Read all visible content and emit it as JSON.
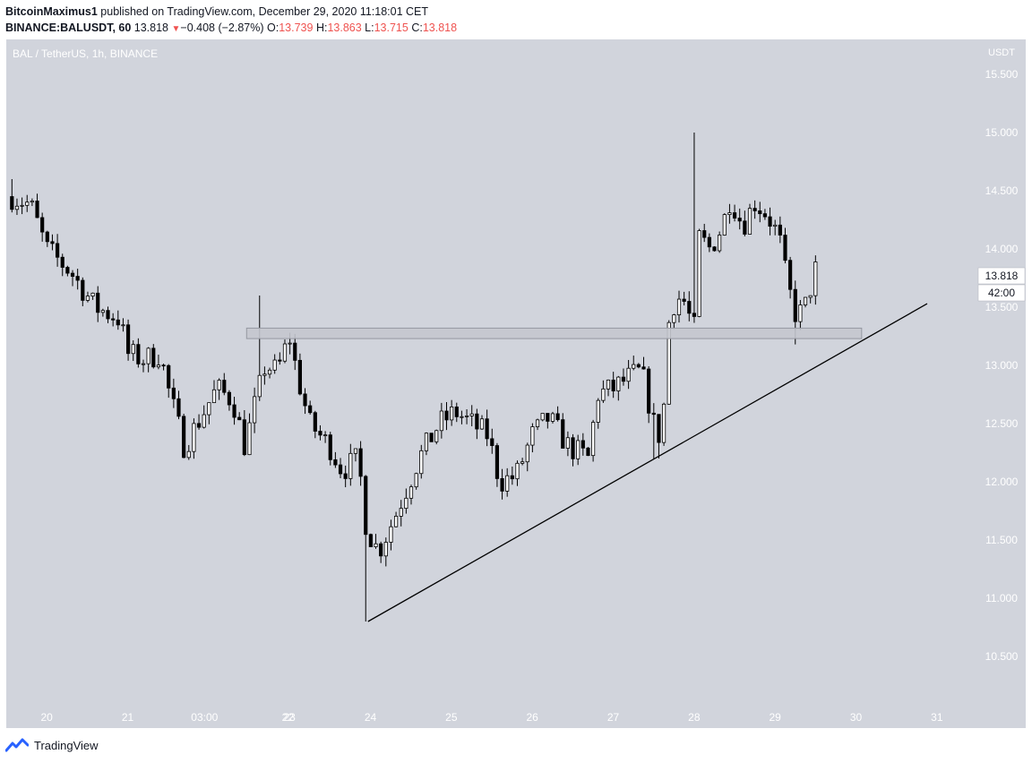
{
  "header": {
    "author": "BitcoinMaximus1",
    "published_text": "published on TradingView.com, December 29, 2020 11:18:01 CET",
    "symbol": "BINANCE:BALUSDT, 60",
    "last": "13.818",
    "change_arrow": "▼",
    "change": "−0.408 (−2.87%)",
    "o_label": "O:",
    "o": "13.739",
    "h_label": "H:",
    "h": "13.863",
    "l_label": "L:",
    "l": "13.715",
    "c_label": "C:",
    "c": "13.818"
  },
  "pane": {
    "legend": "BAL / TetherUS, 1h, BINANCE",
    "axis_currency": "USDT",
    "price_tag": "13.818",
    "countdown_tag": "42:00"
  },
  "footer": {
    "brand": "TradingView"
  },
  "colors": {
    "plot_bg": "#d1d4dc",
    "candle": "#000000",
    "up_body": "#ffffff",
    "down_body": "#000000",
    "zone_fill": "#c4c7ce",
    "zone_stroke": "#9598a1",
    "axis_text": "#ffffff",
    "logo": "#2962ff"
  },
  "chart_data": {
    "type": "candlestick",
    "y_ticks": [
      "10.500",
      "11.000",
      "11.500",
      "12.000",
      "12.500",
      "13.000",
      "13.500",
      "14.000",
      "14.500",
      "15.000",
      "15.500"
    ],
    "x_ticks": [
      "20",
      "21",
      "03:00",
      "22",
      "23",
      "24",
      "25",
      "26",
      "27",
      "28",
      "29",
      "30",
      "31"
    ],
    "ylim": [
      10.1,
      15.8
    ],
    "xlim": [
      19.5,
      31.5
    ],
    "last_price": 13.818,
    "support_zone": {
      "y_low": 13.23,
      "y_high": 13.32,
      "x_start": 22.47,
      "x_end": 30.07
    },
    "trendline": [
      {
        "x": 23.97,
        "y": 10.8
      },
      {
        "x": 30.88,
        "y": 13.53
      }
    ],
    "key_points": [
      {
        "label": "start high",
        "x": 19.57,
        "y": 14.6
      },
      {
        "label": "23rd spike high",
        "x": 22.63,
        "y": 13.6
      },
      {
        "label": "24th low",
        "x": 23.95,
        "y": 10.8
      },
      {
        "label": "27th low",
        "x": 27.53,
        "y": 12.2
      },
      {
        "label": "28th spike high",
        "x": 28.02,
        "y": 15.0
      },
      {
        "label": "29th low",
        "x": 29.25,
        "y": 13.18
      }
    ],
    "price_path": [
      [
        19.57,
        14.45
      ],
      [
        19.8,
        14.38
      ],
      [
        20.0,
        14.0
      ],
      [
        20.3,
        13.8
      ],
      [
        20.6,
        13.5
      ],
      [
        20.9,
        13.4
      ],
      [
        21.0,
        13.1
      ],
      [
        21.2,
        13.05
      ],
      [
        21.4,
        13.1
      ],
      [
        21.5,
        12.8
      ],
      [
        21.7,
        12.3
      ],
      [
        21.9,
        12.55
      ],
      [
        22.1,
        12.8
      ],
      [
        22.3,
        12.7
      ],
      [
        22.45,
        12.3
      ],
      [
        22.55,
        12.6
      ],
      [
        22.7,
        13.0
      ],
      [
        22.85,
        12.95
      ],
      [
        23.0,
        13.25
      ],
      [
        23.1,
        12.9
      ],
      [
        23.25,
        12.5
      ],
      [
        23.5,
        12.3
      ],
      [
        23.65,
        12.1
      ],
      [
        23.85,
        12.2
      ],
      [
        23.95,
        11.6
      ],
      [
        24.1,
        11.4
      ],
      [
        24.3,
        11.7
      ],
      [
        24.6,
        12.2
      ],
      [
        24.85,
        12.5
      ],
      [
        25.05,
        12.6
      ],
      [
        25.25,
        12.5
      ],
      [
        25.45,
        12.4
      ],
      [
        25.6,
        12.0
      ],
      [
        25.8,
        12.05
      ],
      [
        26.0,
        12.4
      ],
      [
        26.2,
        12.55
      ],
      [
        26.45,
        12.3
      ],
      [
        26.7,
        12.2
      ],
      [
        26.8,
        12.75
      ],
      [
        27.0,
        12.8
      ],
      [
        27.2,
        12.9
      ],
      [
        27.35,
        12.95
      ],
      [
        27.5,
        12.5
      ],
      [
        27.6,
        12.35
      ],
      [
        27.7,
        13.5
      ],
      [
        27.85,
        13.6
      ],
      [
        28.0,
        13.3
      ],
      [
        28.05,
        14.1
      ],
      [
        28.2,
        14.0
      ],
      [
        28.35,
        14.2
      ],
      [
        28.45,
        14.45
      ],
      [
        28.6,
        14.2
      ],
      [
        28.75,
        14.4
      ],
      [
        28.9,
        14.3
      ],
      [
        29.05,
        14.1
      ],
      [
        29.15,
        13.7
      ],
      [
        29.25,
        13.45
      ],
      [
        29.35,
        13.45
      ],
      [
        29.5,
        13.82
      ]
    ]
  }
}
